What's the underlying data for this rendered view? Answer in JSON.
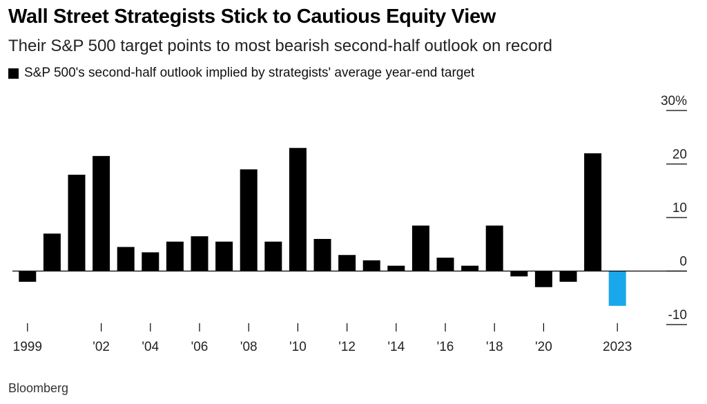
{
  "title": "Wall Street Strategists Stick to Cautious Equity View",
  "subtitle": "Their S&P 500 target points to most bearish second-half outlook on record",
  "legend_label": "S&P 500's second-half outlook implied by strategists' average year-end target",
  "source": "Bloomberg",
  "colors": {
    "bar": "#000000",
    "highlight": "#1aa7ec",
    "axis": "#000000"
  },
  "chart_data": {
    "type": "bar",
    "categories": [
      "1999",
      "2000",
      "2001",
      "2002",
      "2003",
      "2004",
      "2005",
      "2006",
      "2007",
      "2008",
      "2009",
      "2010",
      "2011",
      "2012",
      "2013",
      "2014",
      "2015",
      "2016",
      "2017",
      "2018",
      "2019",
      "2020",
      "2021",
      "2022",
      "2023"
    ],
    "values": [
      -2,
      7,
      18,
      21.5,
      4.5,
      3.5,
      5.5,
      6.5,
      5.5,
      19,
      5.5,
      23,
      6,
      3,
      2,
      1,
      8.5,
      2.5,
      1,
      8.5,
      -1,
      -3,
      -2,
      22,
      -6.5
    ],
    "highlight_index": 24,
    "x_tick_labels": [
      "1999",
      "'02",
      "'04",
      "'06",
      "'08",
      "'10",
      "'12",
      "'14",
      "'16",
      "'18",
      "'20",
      "2023"
    ],
    "x_tick_label_indices": [
      0,
      3,
      5,
      7,
      9,
      11,
      13,
      15,
      17,
      19,
      21,
      24
    ],
    "y_ticks": [
      30,
      20,
      10,
      0,
      -10
    ],
    "y_tick_labels": [
      "30%",
      "20",
      "10",
      "0",
      "-10"
    ],
    "ylim": [
      -10,
      30
    ],
    "xlabel": "",
    "ylabel": ""
  }
}
